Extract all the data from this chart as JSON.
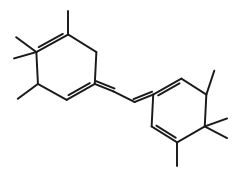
{
  "background": "#ffffff",
  "line_color": "#1a1a1a",
  "line_width": 1.4,
  "figsize": [
    2.48,
    1.7
  ],
  "dpi": 100
}
